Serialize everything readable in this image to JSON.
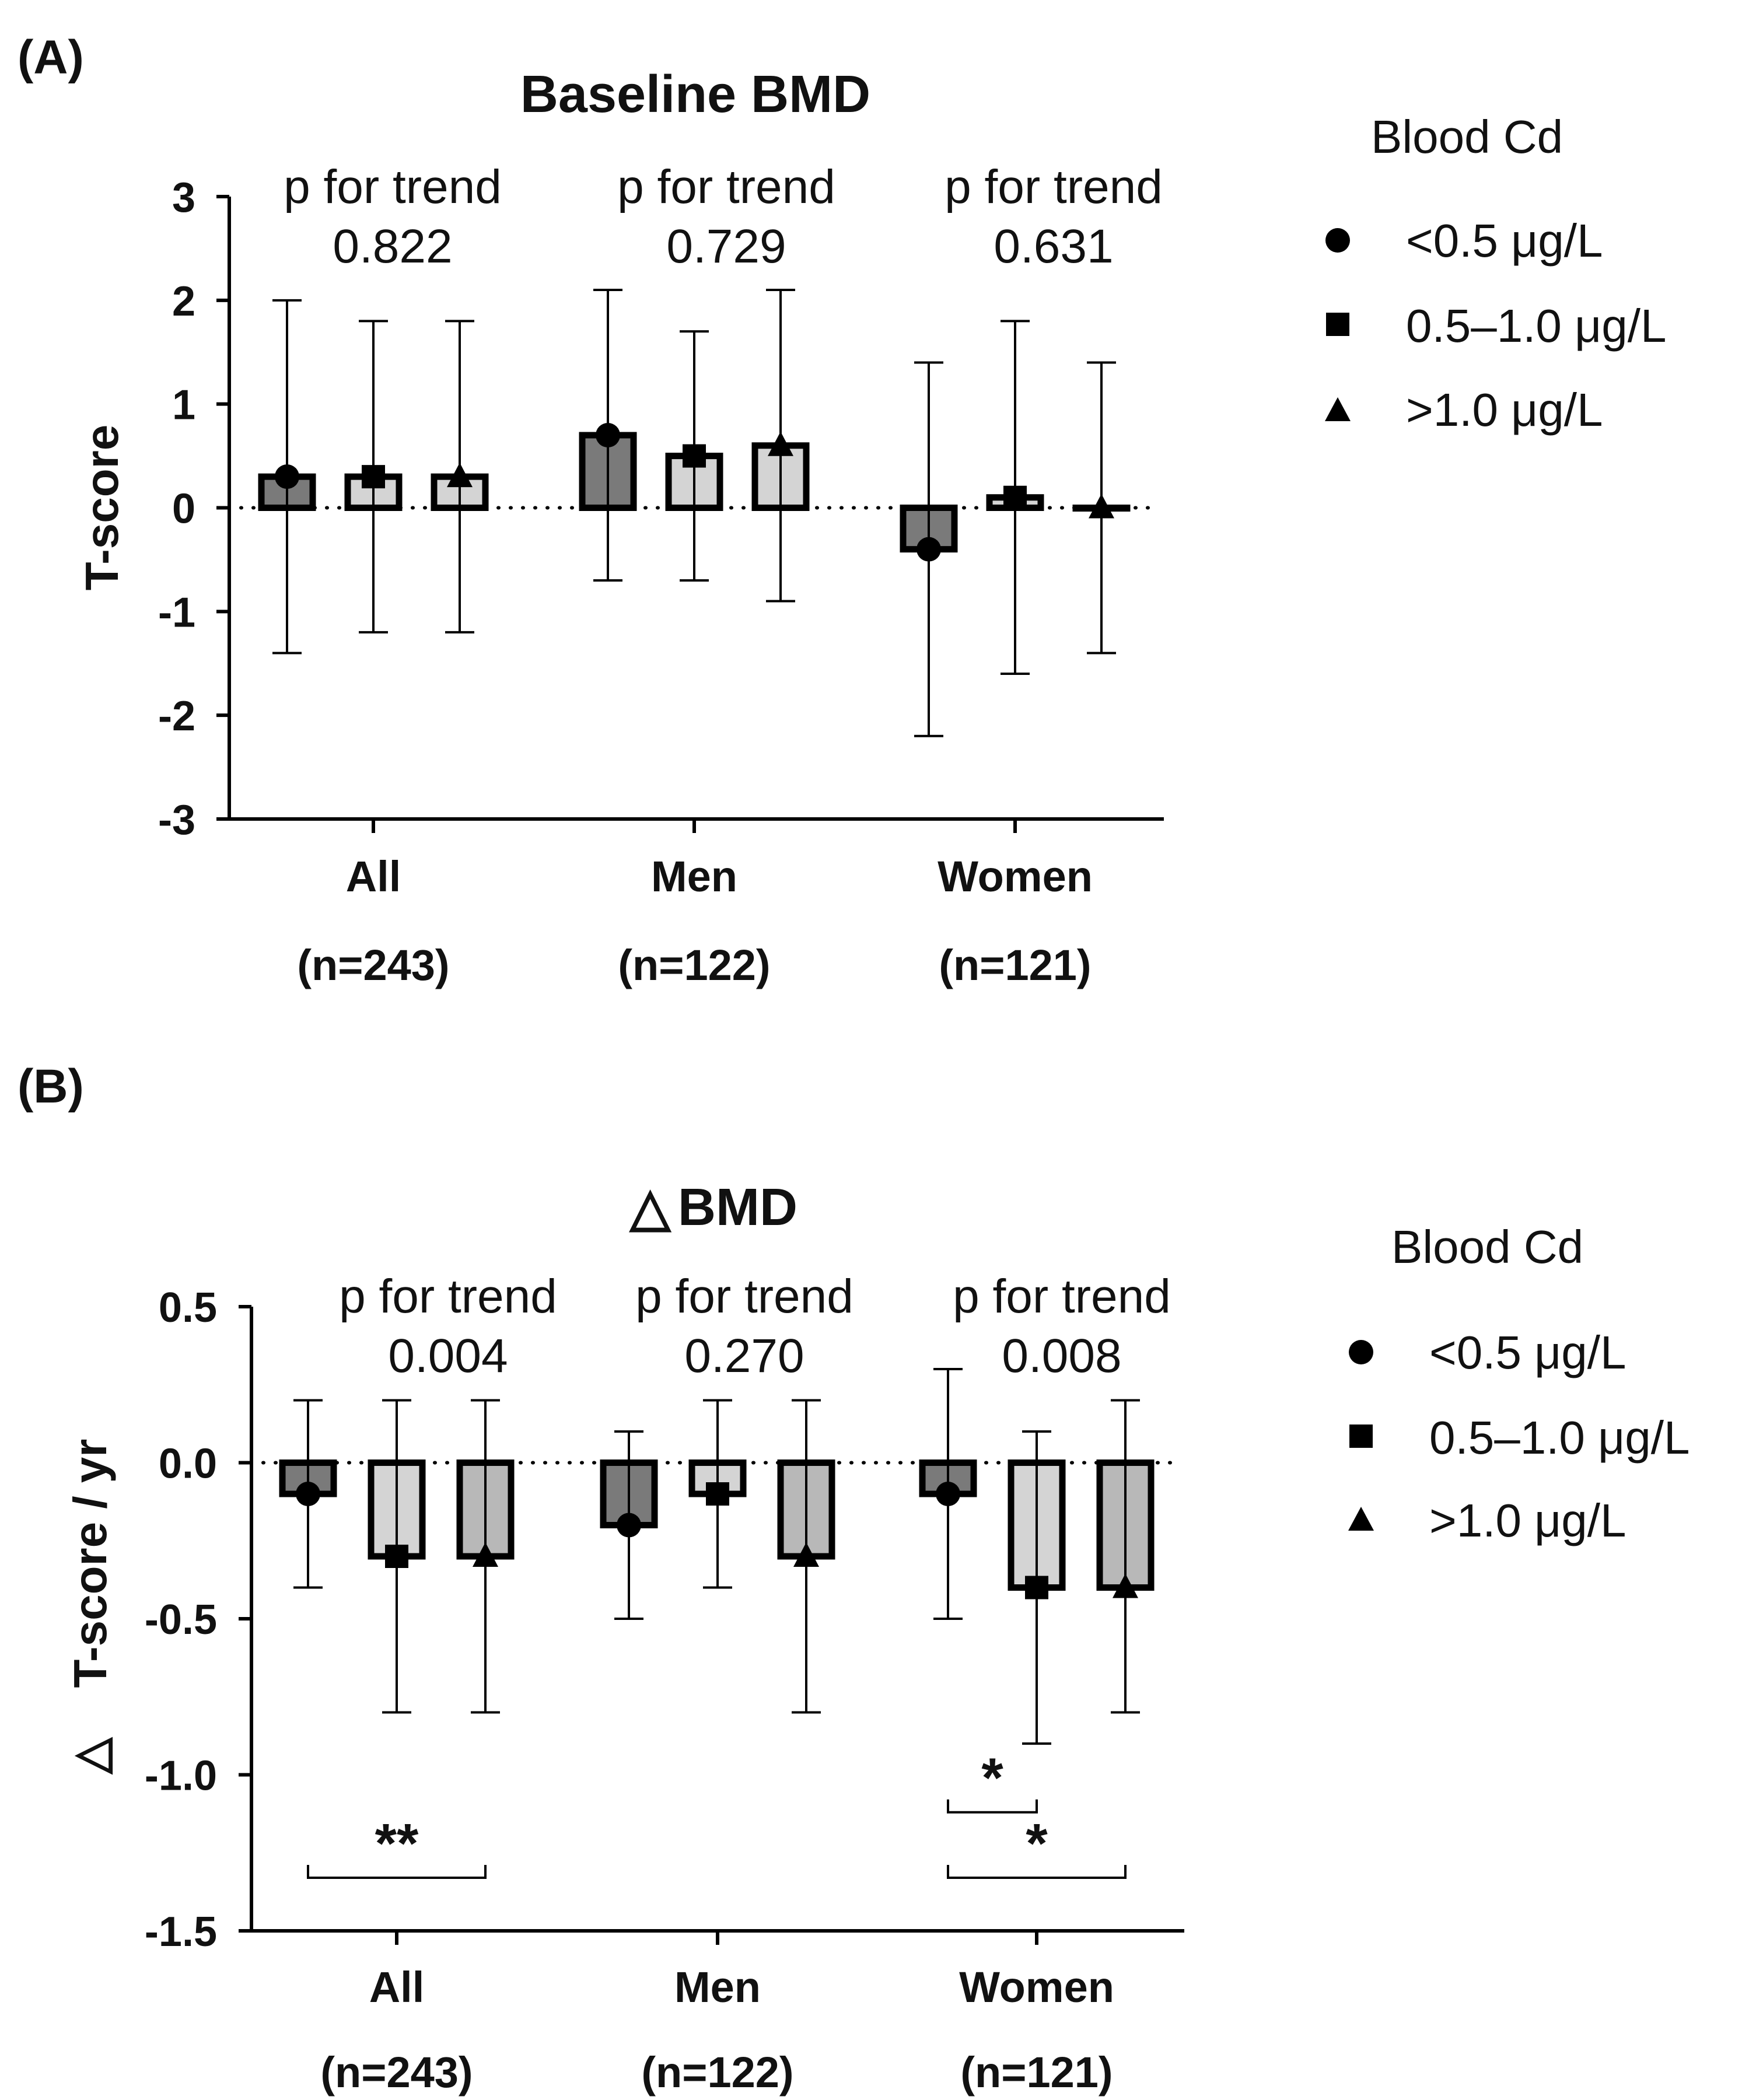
{
  "chart_data": [
    {
      "panel_label": "(A)",
      "type": "bar",
      "title": "Baseline  BMD",
      "ylabel": "T-score",
      "ylim": [
        -3,
        3
      ],
      "yticks": [
        "3",
        "2",
        "1",
        "0",
        "-1",
        "-2",
        "-3"
      ],
      "ytick_values": [
        3,
        2,
        1,
        0,
        -1,
        -2,
        -3
      ],
      "categories": [
        "All",
        "Men",
        "Women"
      ],
      "category_n": [
        "(n=243)",
        "(n=122)",
        "(n=121)"
      ],
      "trend_label": "p for trend",
      "trend_values": [
        "0.822",
        "0.729",
        "0.631"
      ],
      "series": [
        {
          "name": "<0.5 μg/L",
          "marker": "circle",
          "color": "#7a7a7a",
          "values": [
            0.3,
            0.7,
            -0.4
          ],
          "err_low": [
            -1.4,
            -0.7,
            -2.2
          ],
          "err_high": [
            2.0,
            2.1,
            1.4
          ]
        },
        {
          "name": "0.5–1.0 μg/L",
          "marker": "square",
          "color": "#d4d4d4",
          "values": [
            0.3,
            0.5,
            0.1
          ],
          "err_low": [
            -1.2,
            -0.7,
            -1.6
          ],
          "err_high": [
            1.8,
            1.7,
            1.8
          ]
        },
        {
          "name": ">1.0 μg/L",
          "marker": "triangle",
          "color": "#d4d4d4",
          "values": [
            0.3,
            0.6,
            0.0
          ],
          "err_low": [
            -1.2,
            -0.9,
            -1.4
          ],
          "err_high": [
            1.8,
            2.1,
            1.4
          ]
        }
      ],
      "legend_title": "Blood  Cd",
      "reference_line": 0,
      "significance": []
    },
    {
      "panel_label": "(B)",
      "type": "bar",
      "title": "BMD",
      "title_symbol": "△",
      "ylabel": "T-score / yr",
      "ylabel_symbol": "△",
      "ylim": [
        -1.5,
        0.5
      ],
      "yticks": [
        "0.5",
        "0.0",
        "-0.5",
        "-1.0",
        "-1.5"
      ],
      "ytick_values": [
        0.5,
        0.0,
        -0.5,
        -1.0,
        -1.5
      ],
      "categories": [
        "All",
        "Men",
        "Women"
      ],
      "category_n": [
        "(n=243)",
        "(n=122)",
        "(n=121)"
      ],
      "trend_label": "p for trend",
      "trend_values": [
        "0.004",
        "0.270",
        "0.008"
      ],
      "series": [
        {
          "name": "<0.5 μg/L",
          "marker": "circle",
          "color": "#7a7a7a",
          "values": [
            -0.1,
            -0.2,
            -0.1
          ],
          "err_low": [
            -0.4,
            -0.5,
            -0.5
          ],
          "err_high": [
            0.2,
            0.1,
            0.3
          ]
        },
        {
          "name": "0.5–1.0 μg/L",
          "marker": "square",
          "color": "#d4d4d4",
          "values": [
            -0.3,
            -0.1,
            -0.4
          ],
          "err_low": [
            -0.8,
            -0.4,
            -0.9
          ],
          "err_high": [
            0.2,
            0.2,
            0.1
          ]
        },
        {
          "name": ">1.0 μg/L",
          "marker": "triangle",
          "color": "#b8b8b8",
          "values": [
            -0.3,
            -0.3,
            -0.4
          ],
          "err_low": [
            -0.8,
            -0.8,
            -0.8
          ],
          "err_high": [
            0.2,
            0.2,
            0.2
          ]
        }
      ],
      "legend_title": "Blood  Cd",
      "reference_line": 0,
      "significance": [
        {
          "category": 0,
          "from": 0,
          "to": 2,
          "label": "**",
          "y": -1.33
        },
        {
          "category": 2,
          "from": 0,
          "to": 1,
          "label": "*",
          "y": -1.12
        },
        {
          "category": 2,
          "from": 0,
          "to": 2,
          "label": "*",
          "y": -1.33
        }
      ]
    }
  ]
}
